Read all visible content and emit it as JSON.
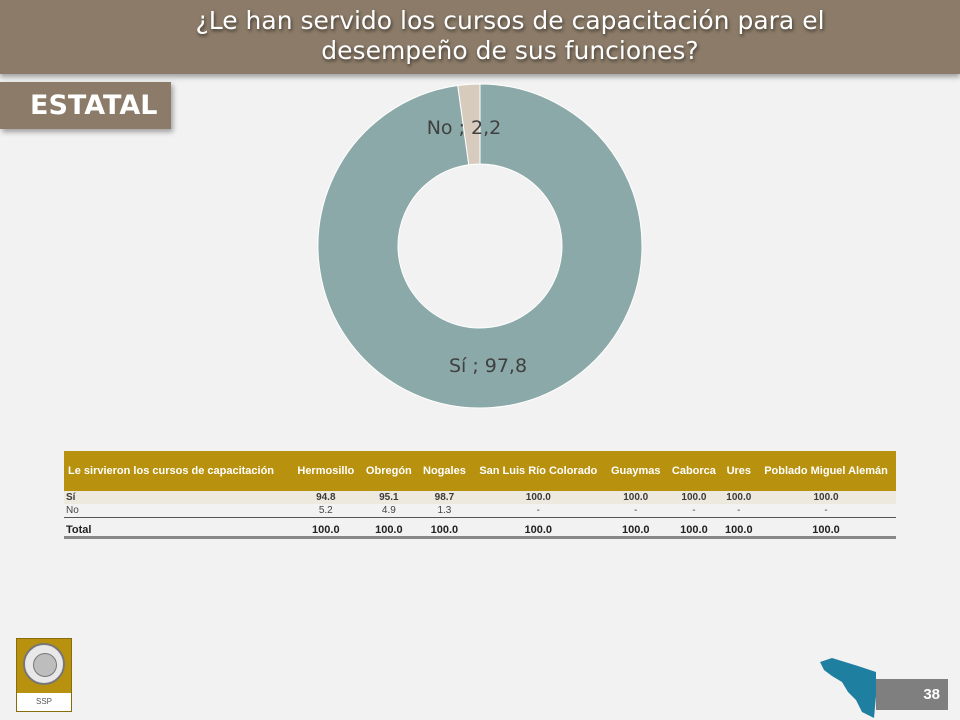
{
  "title": "¿Le han servido los cursos de capacitación para el desempeño de sus funciones?",
  "region_label": "ESTATAL",
  "page_number": "38",
  "logo_label": "SSP",
  "chart_data": {
    "type": "pie",
    "donut": true,
    "slices": [
      {
        "label": "Sí",
        "value": 97.8,
        "display": "Sí ; 97,8",
        "color": "#8ba9a8"
      },
      {
        "label": "No",
        "value": 2.2,
        "display": "No ; 2,2",
        "color": "#d6cbbd"
      }
    ]
  },
  "table": {
    "headers": [
      "Le sirvieron los cursos de capacitación",
      "Hermosillo",
      "Obregón",
      "Nogales",
      "San Luis Río Colorado",
      "Guaymas",
      "Caborca",
      "Ures",
      "Poblado Miguel Alemán"
    ],
    "rows": [
      {
        "label": "Sí",
        "values": [
          "94.8",
          "95.1",
          "98.7",
          "100.0",
          "100.0",
          "100.0",
          "100.0",
          "100.0"
        ]
      },
      {
        "label": "No",
        "values": [
          "5.2",
          "4.9",
          "1.3",
          "-",
          "-",
          "-",
          "-",
          "-"
        ]
      },
      {
        "label": "Total",
        "values": [
          "100.0",
          "100.0",
          "100.0",
          "100.0",
          "100.0",
          "100.0",
          "100.0",
          "100.0"
        ]
      }
    ]
  },
  "colors": {
    "header_bar": "#8b7b68",
    "table_header": "#b8910f",
    "map": "#1f7fa0",
    "page_badge": "#7f7f7f"
  }
}
